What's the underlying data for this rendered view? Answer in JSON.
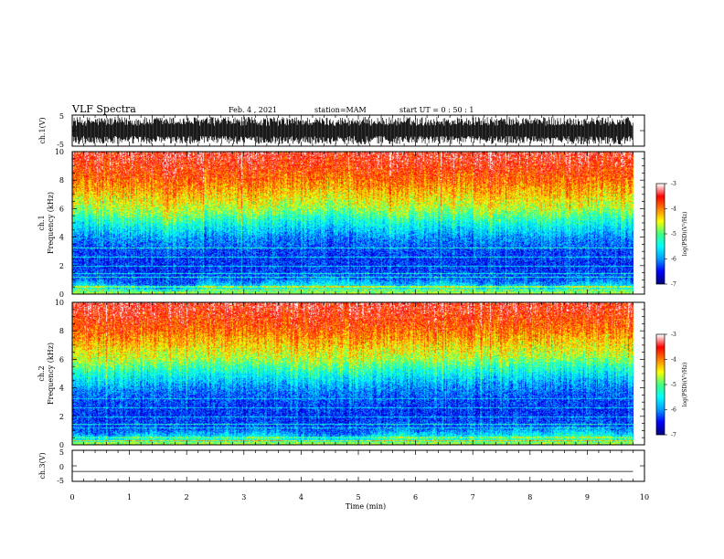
{
  "header": {
    "title": "VLF Spectra",
    "date": "Feb. 4 , 2021",
    "station": "station=MAM",
    "start": "start UT =  0 : 50 : 1"
  },
  "chart_data": [
    {
      "type": "line",
      "panel": "ch1-waveform",
      "ylabel": "ch.1(V)",
      "ylim": [
        -5,
        5
      ],
      "yticks": [
        "5",
        "-5"
      ],
      "xlim": [
        0,
        10
      ],
      "data_extent_min": 9.8,
      "description_values": "dense oscillating waveform spanning roughly -4 to 4 V"
    },
    {
      "type": "heatmap",
      "panel": "ch1-spectrogram",
      "ylabel_line1": "ch.1",
      "ylabel_line2": "Frequency (kHz)",
      "ylim": [
        0,
        10
      ],
      "yticks": [
        "0",
        "2",
        "4",
        "6",
        "8",
        "10"
      ],
      "xlim": [
        0,
        10
      ],
      "data_extent_min": 9.8,
      "colorbar": {
        "label": "log(PSD)(V²/Hz)",
        "range": [
          -7,
          -3
        ],
        "ticks": [
          "-3",
          "-4",
          "-5",
          "-6",
          "-7"
        ],
        "colormap": [
          "#000080",
          "#0000ff",
          "#00a0ff",
          "#00ffff",
          "#40ff80",
          "#ffff00",
          "#ff8000",
          "#ff0000",
          "#ffffff"
        ]
      },
      "log_psd_profile_by_freq_khz": [
        [
          0.2,
          -5.2
        ],
        [
          1,
          -6.2
        ],
        [
          2,
          -6.4
        ],
        [
          3,
          -6.3
        ],
        [
          4,
          -6.0
        ],
        [
          5,
          -5.4
        ],
        [
          6,
          -4.7
        ],
        [
          7,
          -4.3
        ],
        [
          8,
          -3.9
        ],
        [
          9,
          -3.6
        ],
        [
          10,
          -3.4
        ]
      ]
    },
    {
      "type": "heatmap",
      "panel": "ch2-spectrogram",
      "ylabel_line1": "ch.2",
      "ylabel_line2": "Frequency (kHz)",
      "ylim": [
        0,
        10
      ],
      "yticks": [
        "0",
        "2",
        "4",
        "6",
        "8",
        "10"
      ],
      "xlim": [
        0,
        10
      ],
      "data_extent_min": 9.8,
      "colorbar": {
        "label": "log(PSD)(V²/Hz)",
        "range": [
          -7,
          -3
        ],
        "ticks": [
          "-3",
          "-4",
          "-5",
          "-6",
          "-7"
        ],
        "colormap": [
          "#000080",
          "#0000ff",
          "#00a0ff",
          "#00ffff",
          "#40ff80",
          "#ffff00",
          "#ff8000",
          "#ff0000",
          "#ffffff"
        ]
      },
      "log_psd_profile_by_freq_khz": [
        [
          0.2,
          -5.2
        ],
        [
          1,
          -6.2
        ],
        [
          2,
          -6.4
        ],
        [
          3,
          -6.3
        ],
        [
          4,
          -6.0
        ],
        [
          5,
          -5.4
        ],
        [
          6,
          -4.7
        ],
        [
          7,
          -4.3
        ],
        [
          8,
          -3.9
        ],
        [
          9,
          -3.6
        ],
        [
          10,
          -3.4
        ]
      ]
    },
    {
      "type": "line",
      "panel": "ch3-waveform",
      "ylabel": "ch.3(V)",
      "ylim": [
        -5,
        5
      ],
      "yticks": [
        "5",
        "0",
        "-5"
      ],
      "xlim": [
        0,
        10
      ],
      "x": [
        0,
        9.8
      ],
      "y": [
        -1.8,
        -1.8
      ]
    }
  ],
  "xaxis": {
    "label": "Time (min)",
    "ticks": [
      "0",
      "1",
      "2",
      "3",
      "4",
      "5",
      "6",
      "7",
      "8",
      "9",
      "10"
    ]
  }
}
